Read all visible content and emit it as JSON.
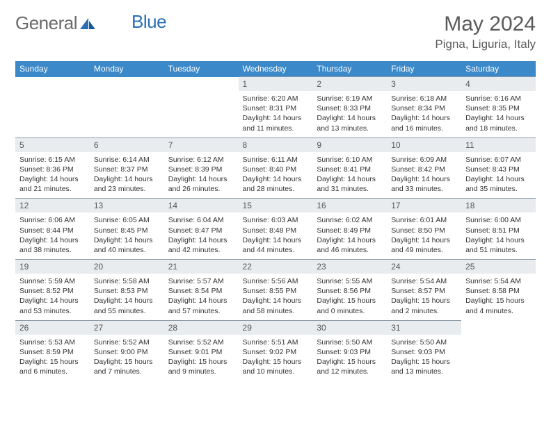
{
  "brand": {
    "part1": "General",
    "part2": "Blue"
  },
  "title": "May 2024",
  "location": "Pigna, Liguria, Italy",
  "colors": {
    "header_bg": "#3b89c9",
    "header_text": "#ffffff",
    "daynum_bg": "#e9ecef",
    "border": "#8a9aa8",
    "body_text": "#333333",
    "title_text": "#5a5a5a",
    "logo_gray": "#6a6a6a",
    "logo_blue": "#2a6fb5"
  },
  "weekdays": [
    "Sunday",
    "Monday",
    "Tuesday",
    "Wednesday",
    "Thursday",
    "Friday",
    "Saturday"
  ],
  "weeks": [
    [
      null,
      null,
      null,
      {
        "n": "1",
        "sunrise": "Sunrise: 6:20 AM",
        "sunset": "Sunset: 8:31 PM",
        "d1": "Daylight: 14 hours",
        "d2": "and 11 minutes."
      },
      {
        "n": "2",
        "sunrise": "Sunrise: 6:19 AM",
        "sunset": "Sunset: 8:33 PM",
        "d1": "Daylight: 14 hours",
        "d2": "and 13 minutes."
      },
      {
        "n": "3",
        "sunrise": "Sunrise: 6:18 AM",
        "sunset": "Sunset: 8:34 PM",
        "d1": "Daylight: 14 hours",
        "d2": "and 16 minutes."
      },
      {
        "n": "4",
        "sunrise": "Sunrise: 6:16 AM",
        "sunset": "Sunset: 8:35 PM",
        "d1": "Daylight: 14 hours",
        "d2": "and 18 minutes."
      }
    ],
    [
      {
        "n": "5",
        "sunrise": "Sunrise: 6:15 AM",
        "sunset": "Sunset: 8:36 PM",
        "d1": "Daylight: 14 hours",
        "d2": "and 21 minutes."
      },
      {
        "n": "6",
        "sunrise": "Sunrise: 6:14 AM",
        "sunset": "Sunset: 8:37 PM",
        "d1": "Daylight: 14 hours",
        "d2": "and 23 minutes."
      },
      {
        "n": "7",
        "sunrise": "Sunrise: 6:12 AM",
        "sunset": "Sunset: 8:39 PM",
        "d1": "Daylight: 14 hours",
        "d2": "and 26 minutes."
      },
      {
        "n": "8",
        "sunrise": "Sunrise: 6:11 AM",
        "sunset": "Sunset: 8:40 PM",
        "d1": "Daylight: 14 hours",
        "d2": "and 28 minutes."
      },
      {
        "n": "9",
        "sunrise": "Sunrise: 6:10 AM",
        "sunset": "Sunset: 8:41 PM",
        "d1": "Daylight: 14 hours",
        "d2": "and 31 minutes."
      },
      {
        "n": "10",
        "sunrise": "Sunrise: 6:09 AM",
        "sunset": "Sunset: 8:42 PM",
        "d1": "Daylight: 14 hours",
        "d2": "and 33 minutes."
      },
      {
        "n": "11",
        "sunrise": "Sunrise: 6:07 AM",
        "sunset": "Sunset: 8:43 PM",
        "d1": "Daylight: 14 hours",
        "d2": "and 35 minutes."
      }
    ],
    [
      {
        "n": "12",
        "sunrise": "Sunrise: 6:06 AM",
        "sunset": "Sunset: 8:44 PM",
        "d1": "Daylight: 14 hours",
        "d2": "and 38 minutes."
      },
      {
        "n": "13",
        "sunrise": "Sunrise: 6:05 AM",
        "sunset": "Sunset: 8:45 PM",
        "d1": "Daylight: 14 hours",
        "d2": "and 40 minutes."
      },
      {
        "n": "14",
        "sunrise": "Sunrise: 6:04 AM",
        "sunset": "Sunset: 8:47 PM",
        "d1": "Daylight: 14 hours",
        "d2": "and 42 minutes."
      },
      {
        "n": "15",
        "sunrise": "Sunrise: 6:03 AM",
        "sunset": "Sunset: 8:48 PM",
        "d1": "Daylight: 14 hours",
        "d2": "and 44 minutes."
      },
      {
        "n": "16",
        "sunrise": "Sunrise: 6:02 AM",
        "sunset": "Sunset: 8:49 PM",
        "d1": "Daylight: 14 hours",
        "d2": "and 46 minutes."
      },
      {
        "n": "17",
        "sunrise": "Sunrise: 6:01 AM",
        "sunset": "Sunset: 8:50 PM",
        "d1": "Daylight: 14 hours",
        "d2": "and 49 minutes."
      },
      {
        "n": "18",
        "sunrise": "Sunrise: 6:00 AM",
        "sunset": "Sunset: 8:51 PM",
        "d1": "Daylight: 14 hours",
        "d2": "and 51 minutes."
      }
    ],
    [
      {
        "n": "19",
        "sunrise": "Sunrise: 5:59 AM",
        "sunset": "Sunset: 8:52 PM",
        "d1": "Daylight: 14 hours",
        "d2": "and 53 minutes."
      },
      {
        "n": "20",
        "sunrise": "Sunrise: 5:58 AM",
        "sunset": "Sunset: 8:53 PM",
        "d1": "Daylight: 14 hours",
        "d2": "and 55 minutes."
      },
      {
        "n": "21",
        "sunrise": "Sunrise: 5:57 AM",
        "sunset": "Sunset: 8:54 PM",
        "d1": "Daylight: 14 hours",
        "d2": "and 57 minutes."
      },
      {
        "n": "22",
        "sunrise": "Sunrise: 5:56 AM",
        "sunset": "Sunset: 8:55 PM",
        "d1": "Daylight: 14 hours",
        "d2": "and 58 minutes."
      },
      {
        "n": "23",
        "sunrise": "Sunrise: 5:55 AM",
        "sunset": "Sunset: 8:56 PM",
        "d1": "Daylight: 15 hours",
        "d2": "and 0 minutes."
      },
      {
        "n": "24",
        "sunrise": "Sunrise: 5:54 AM",
        "sunset": "Sunset: 8:57 PM",
        "d1": "Daylight: 15 hours",
        "d2": "and 2 minutes."
      },
      {
        "n": "25",
        "sunrise": "Sunrise: 5:54 AM",
        "sunset": "Sunset: 8:58 PM",
        "d1": "Daylight: 15 hours",
        "d2": "and 4 minutes."
      }
    ],
    [
      {
        "n": "26",
        "sunrise": "Sunrise: 5:53 AM",
        "sunset": "Sunset: 8:59 PM",
        "d1": "Daylight: 15 hours",
        "d2": "and 6 minutes."
      },
      {
        "n": "27",
        "sunrise": "Sunrise: 5:52 AM",
        "sunset": "Sunset: 9:00 PM",
        "d1": "Daylight: 15 hours",
        "d2": "and 7 minutes."
      },
      {
        "n": "28",
        "sunrise": "Sunrise: 5:52 AM",
        "sunset": "Sunset: 9:01 PM",
        "d1": "Daylight: 15 hours",
        "d2": "and 9 minutes."
      },
      {
        "n": "29",
        "sunrise": "Sunrise: 5:51 AM",
        "sunset": "Sunset: 9:02 PM",
        "d1": "Daylight: 15 hours",
        "d2": "and 10 minutes."
      },
      {
        "n": "30",
        "sunrise": "Sunrise: 5:50 AM",
        "sunset": "Sunset: 9:03 PM",
        "d1": "Daylight: 15 hours",
        "d2": "and 12 minutes."
      },
      {
        "n": "31",
        "sunrise": "Sunrise: 5:50 AM",
        "sunset": "Sunset: 9:03 PM",
        "d1": "Daylight: 15 hours",
        "d2": "and 13 minutes."
      },
      null
    ]
  ]
}
